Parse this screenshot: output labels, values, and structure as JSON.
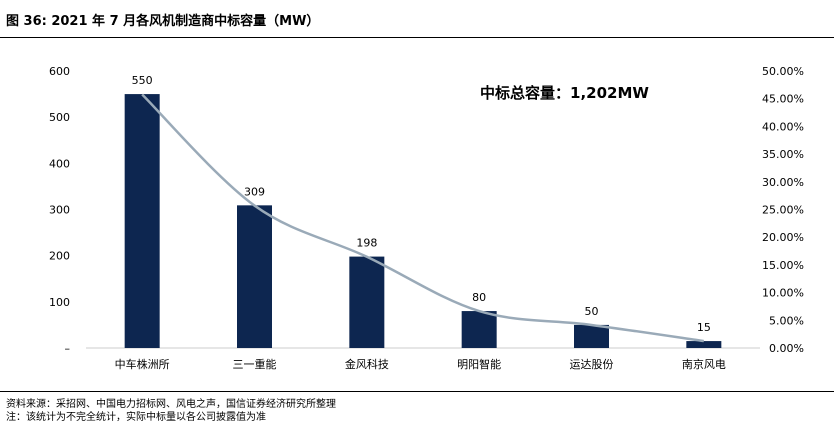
{
  "title": "图 36:  2021 年 7 月各风机制造商中标容量（MW）",
  "footnote_source": "资料来源：采招网、中国电力招标网、风电之声，国信证券经济研究所整理",
  "footnote_note": "注：该统计为不完全统计，实际中标量以各公司披露值为准",
  "colors": {
    "bar": "#0d2650",
    "line": "#9aaab8"
  },
  "chart_data": {
    "type": "bar",
    "categories": [
      "中车株洲所",
      "三一重能",
      "金风科技",
      "明阳智能",
      "运达股份",
      "南京风电"
    ],
    "values": [
      550,
      309,
      198,
      80,
      50,
      15
    ],
    "data_labels": [
      "550",
      "309",
      "198",
      "80",
      "50",
      "15"
    ],
    "ylim": [
      0,
      600
    ],
    "y_ticks": [
      "–",
      "100",
      "200",
      "300",
      "400",
      "500",
      "600"
    ],
    "y2lim": [
      0,
      0.5
    ],
    "y2_ticks": [
      "0.00%",
      "5.00%",
      "10.00%",
      "15.00%",
      "20.00%",
      "25.00%",
      "30.00%",
      "35.00%",
      "40.00%",
      "45.00%",
      "50.00%"
    ],
    "series": [
      {
        "type": "bar",
        "axis": "left",
        "values": [
          550,
          309,
          198,
          80,
          50,
          15
        ]
      },
      {
        "type": "line",
        "axis": "right",
        "smooth": true,
        "values": [
          0.4576,
          0.2571,
          0.1647,
          0.0666,
          0.0416,
          0.0125
        ]
      }
    ],
    "annotation": "中标总容量：1,202MW",
    "grid": false
  }
}
